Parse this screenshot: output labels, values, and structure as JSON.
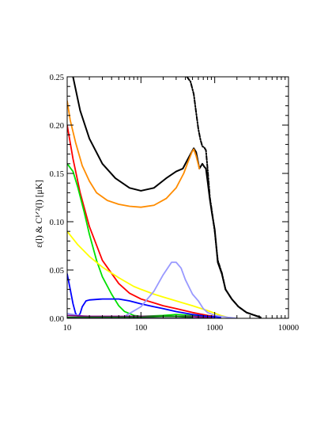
{
  "chart_data": {
    "type": "line",
    "title": "",
    "xlabel": "",
    "ylabel": "ε(l) & C¹ᐟ²(l) [μK]",
    "xscale": "log",
    "xlim": [
      10,
      10000
    ],
    "ylim": [
      0,
      0.25
    ],
    "grid": false,
    "legend": "none",
    "x_ticks": [
      10,
      100,
      1000,
      10000
    ],
    "x_tick_labels": [
      "10",
      "100",
      "1000",
      "10000"
    ],
    "y_ticks": [
      0.0,
      0.05,
      0.1,
      0.15,
      0.2,
      0.25
    ],
    "y_tick_labels": [
      "0.00",
      "0.05",
      "0.10",
      "0.15",
      "0.20",
      "0.25"
    ],
    "series": [
      {
        "color": "#000000",
        "style": "dash-dot",
        "points": [
          [
            420,
            0.25
          ],
          [
            470,
            0.245
          ],
          [
            520,
            0.232
          ],
          [
            560,
            0.213
          ],
          [
            600,
            0.196
          ],
          [
            640,
            0.185
          ],
          [
            680,
            0.178
          ],
          [
            720,
            0.177
          ],
          [
            760,
            0.174
          ],
          [
            800,
            0.155
          ],
          [
            860,
            0.125
          ],
          [
            920,
            0.11
          ],
          [
            1000,
            0.09
          ],
          [
            1100,
            0.06
          ],
          [
            1250,
            0.047
          ],
          [
            1400,
            0.03
          ],
          [
            1700,
            0.02
          ],
          [
            2100,
            0.012
          ],
          [
            2700,
            0.006
          ],
          [
            3500,
            0.003
          ],
          [
            4200,
            0.001
          ]
        ]
      },
      {
        "color": "#000000",
        "style": "solid",
        "points": [
          [
            12,
            0.25
          ],
          [
            15,
            0.215
          ],
          [
            20,
            0.186
          ],
          [
            30,
            0.16
          ],
          [
            45,
            0.145
          ],
          [
            70,
            0.135
          ],
          [
            100,
            0.132
          ],
          [
            150,
            0.135
          ],
          [
            220,
            0.145
          ],
          [
            300,
            0.152
          ],
          [
            370,
            0.155
          ],
          [
            420,
            0.163
          ],
          [
            470,
            0.17
          ],
          [
            520,
            0.176
          ],
          [
            560,
            0.172
          ],
          [
            620,
            0.155
          ],
          [
            680,
            0.16
          ],
          [
            720,
            0.157
          ],
          [
            760,
            0.155
          ],
          [
            800,
            0.142
          ],
          [
            860,
            0.123
          ],
          [
            920,
            0.108
          ],
          [
            1000,
            0.092
          ],
          [
            1100,
            0.058
          ],
          [
            1250,
            0.046
          ],
          [
            1400,
            0.03
          ],
          [
            1700,
            0.02
          ],
          [
            2100,
            0.012
          ],
          [
            2700,
            0.006
          ],
          [
            3500,
            0.003
          ],
          [
            4200,
            0.001
          ]
        ]
      },
      {
        "color": "#ff8c00",
        "style": "solid",
        "points": [
          [
            10,
            0.225
          ],
          [
            11,
            0.205
          ],
          [
            13,
            0.182
          ],
          [
            16,
            0.158
          ],
          [
            20,
            0.142
          ],
          [
            25,
            0.13
          ],
          [
            35,
            0.122
          ],
          [
            50,
            0.118
          ],
          [
            70,
            0.116
          ],
          [
            100,
            0.115
          ],
          [
            150,
            0.117
          ],
          [
            220,
            0.124
          ],
          [
            300,
            0.135
          ],
          [
            380,
            0.15
          ],
          [
            440,
            0.163
          ],
          [
            490,
            0.172
          ],
          [
            520,
            0.175
          ],
          [
            560,
            0.168
          ],
          [
            620,
            0.155
          ]
        ]
      },
      {
        "color": "#ff0000",
        "style": "solid",
        "points": [
          [
            10,
            0.2
          ],
          [
            12,
            0.165
          ],
          [
            15,
            0.13
          ],
          [
            20,
            0.095
          ],
          [
            30,
            0.06
          ],
          [
            50,
            0.036
          ],
          [
            70,
            0.026
          ],
          [
            100,
            0.02
          ],
          [
            150,
            0.016
          ],
          [
            200,
            0.013
          ],
          [
            300,
            0.01
          ],
          [
            500,
            0.006
          ],
          [
            800,
            0.003
          ],
          [
            1200,
            0.001
          ]
        ]
      },
      {
        "color": "#00e000",
        "style": "solid",
        "points": [
          [
            10,
            0.16
          ],
          [
            12,
            0.152
          ],
          [
            14,
            0.135
          ],
          [
            17,
            0.11
          ],
          [
            20,
            0.087
          ],
          [
            25,
            0.06
          ],
          [
            30,
            0.043
          ],
          [
            40,
            0.025
          ],
          [
            50,
            0.013
          ],
          [
            60,
            0.007
          ],
          [
            80,
            0.003
          ],
          [
            100,
            0.002
          ],
          [
            200,
            0.003
          ],
          [
            300,
            0.004
          ],
          [
            500,
            0.003
          ],
          [
            800,
            0.002
          ]
        ]
      },
      {
        "color": "#ffff00",
        "style": "solid",
        "points": [
          [
            10,
            0.09
          ],
          [
            14,
            0.076
          ],
          [
            20,
            0.064
          ],
          [
            30,
            0.053
          ],
          [
            50,
            0.042
          ],
          [
            80,
            0.033
          ],
          [
            100,
            0.03
          ],
          [
            150,
            0.025
          ],
          [
            200,
            0.022
          ],
          [
            300,
            0.018
          ],
          [
            500,
            0.013
          ],
          [
            800,
            0.008
          ],
          [
            1200,
            0.003
          ],
          [
            1500,
            0.001
          ]
        ]
      },
      {
        "color": "#0000ff",
        "style": "solid",
        "points": [
          [
            10,
            0.046
          ],
          [
            11,
            0.03
          ],
          [
            12,
            0.015
          ],
          [
            13,
            0.005
          ],
          [
            14,
            0.002
          ],
          [
            15,
            0.005
          ],
          [
            16,
            0.012
          ],
          [
            18,
            0.018
          ],
          [
            20,
            0.019
          ],
          [
            30,
            0.02
          ],
          [
            50,
            0.02
          ],
          [
            70,
            0.018
          ],
          [
            100,
            0.015
          ],
          [
            150,
            0.012
          ],
          [
            200,
            0.01
          ],
          [
            300,
            0.007
          ],
          [
            500,
            0.004
          ],
          [
            800,
            0.002
          ],
          [
            1200,
            0.001
          ]
        ]
      },
      {
        "color": "#9999ff",
        "style": "solid",
        "points": [
          [
            10,
            0.005
          ],
          [
            20,
            0.001
          ],
          [
            40,
            0.0
          ],
          [
            60,
            0.002
          ],
          [
            100,
            0.012
          ],
          [
            150,
            0.028
          ],
          [
            200,
            0.045
          ],
          [
            260,
            0.058
          ],
          [
            300,
            0.058
          ],
          [
            350,
            0.052
          ],
          [
            400,
            0.04
          ],
          [
            500,
            0.025
          ],
          [
            600,
            0.018
          ],
          [
            700,
            0.01
          ],
          [
            800,
            0.006
          ],
          [
            1000,
            0.003
          ],
          [
            1500,
            0.001
          ],
          [
            2000,
            0.0
          ]
        ]
      },
      {
        "color": "#800080",
        "style": "solid",
        "points": [
          [
            10,
            0.003
          ],
          [
            20,
            0.002
          ],
          [
            50,
            0.002
          ],
          [
            100,
            0.002
          ],
          [
            200,
            0.002
          ],
          [
            300,
            0.002
          ],
          [
            500,
            0.002
          ],
          [
            700,
            0.001
          ],
          [
            900,
            0.001
          ]
        ]
      },
      {
        "color": "#008000",
        "style": "solid",
        "points": [
          [
            10,
            0.001
          ],
          [
            50,
            0.001
          ],
          [
            100,
            0.001
          ],
          [
            200,
            0.002
          ],
          [
            300,
            0.002
          ],
          [
            500,
            0.001
          ]
        ]
      },
      {
        "color": "#4b0082",
        "style": "solid",
        "points": [
          [
            10,
            0.0
          ],
          [
            100,
            0.0
          ],
          [
            1000,
            0.0
          ]
        ]
      }
    ]
  }
}
